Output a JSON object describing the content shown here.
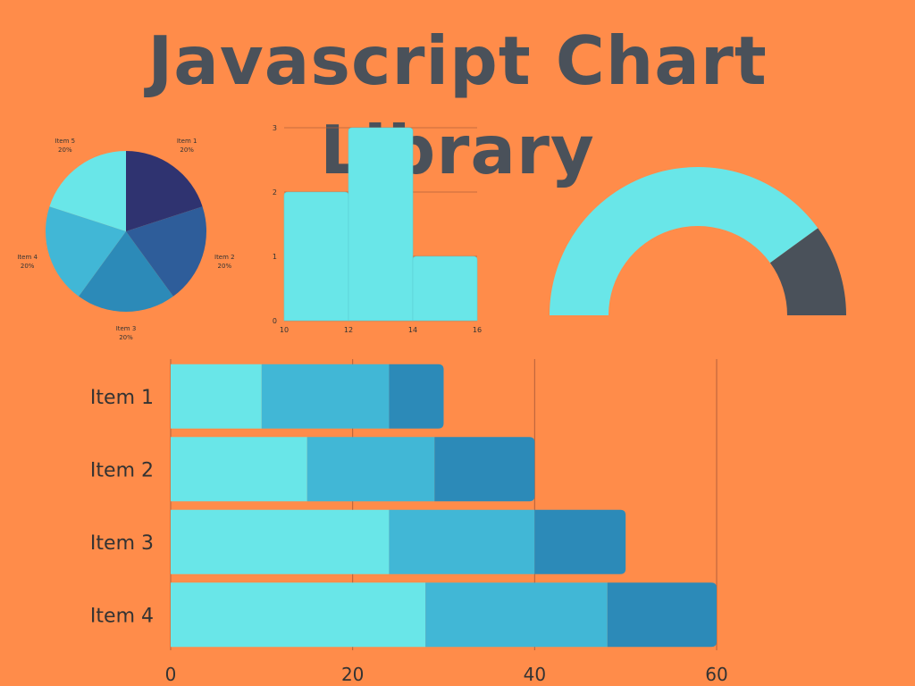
{
  "header": {
    "title": "Javascript Chart Library"
  },
  "colors": {
    "background": "#FF8C4A",
    "title": "#4A515A",
    "grid": "#B5603A",
    "axis_text": "#333333",
    "cyan": "#69E6E8",
    "sky": "#41B7D6",
    "steel": "#2C8AB8",
    "cobalt": "#2E5D9A",
    "navy": "#2F3370",
    "charcoal": "#4A515A"
  },
  "chart_data": [
    {
      "id": "pie",
      "type": "pie",
      "slices": [
        {
          "label": "Item 1",
          "value": 20,
          "pct_label": "20%",
          "color": "#2F3370"
        },
        {
          "label": "Item 2",
          "value": 20,
          "pct_label": "20%",
          "color": "#2E5D9A"
        },
        {
          "label": "Item 3",
          "value": 20,
          "pct_label": "20%",
          "color": "#2C8AB8"
        },
        {
          "label": "Item 4",
          "value": 20,
          "pct_label": "20%",
          "color": "#41B7D6"
        },
        {
          "label": "Item 5",
          "value": 20,
          "pct_label": "20%",
          "color": "#69E6E8"
        }
      ]
    },
    {
      "id": "histogram",
      "type": "bar",
      "bins": [
        {
          "x0": 10,
          "x1": 12,
          "count": 2
        },
        {
          "x0": 12,
          "x1": 14,
          "count": 3
        },
        {
          "x0": 14,
          "x1": 16,
          "count": 1
        }
      ],
      "xlim": [
        10,
        16
      ],
      "ylim": [
        0,
        3
      ],
      "x_ticks": [
        10,
        12,
        14,
        16
      ],
      "y_ticks": [
        0,
        1,
        2,
        3
      ],
      "grid": true,
      "color": "#69E6E8"
    },
    {
      "id": "gauge",
      "type": "pie",
      "value": 0.8,
      "colors": [
        "#69E6E8",
        "#4A515A"
      ]
    },
    {
      "id": "stacked-bar",
      "type": "bar",
      "orientation": "horizontal",
      "stacked": true,
      "categories": [
        "Item 1",
        "Item 2",
        "Item 3",
        "Item 4"
      ],
      "series": [
        {
          "values": [
            10,
            15,
            24,
            28
          ],
          "color": "#69E6E8"
        },
        {
          "values": [
            14,
            14,
            16,
            20
          ],
          "color": "#41B7D6"
        },
        {
          "values": [
            6,
            11,
            10,
            12
          ],
          "color": "#2C8AB8"
        }
      ],
      "xlim": [
        0,
        60
      ],
      "x_ticks": [
        0,
        20,
        40,
        60
      ],
      "grid": true
    }
  ]
}
